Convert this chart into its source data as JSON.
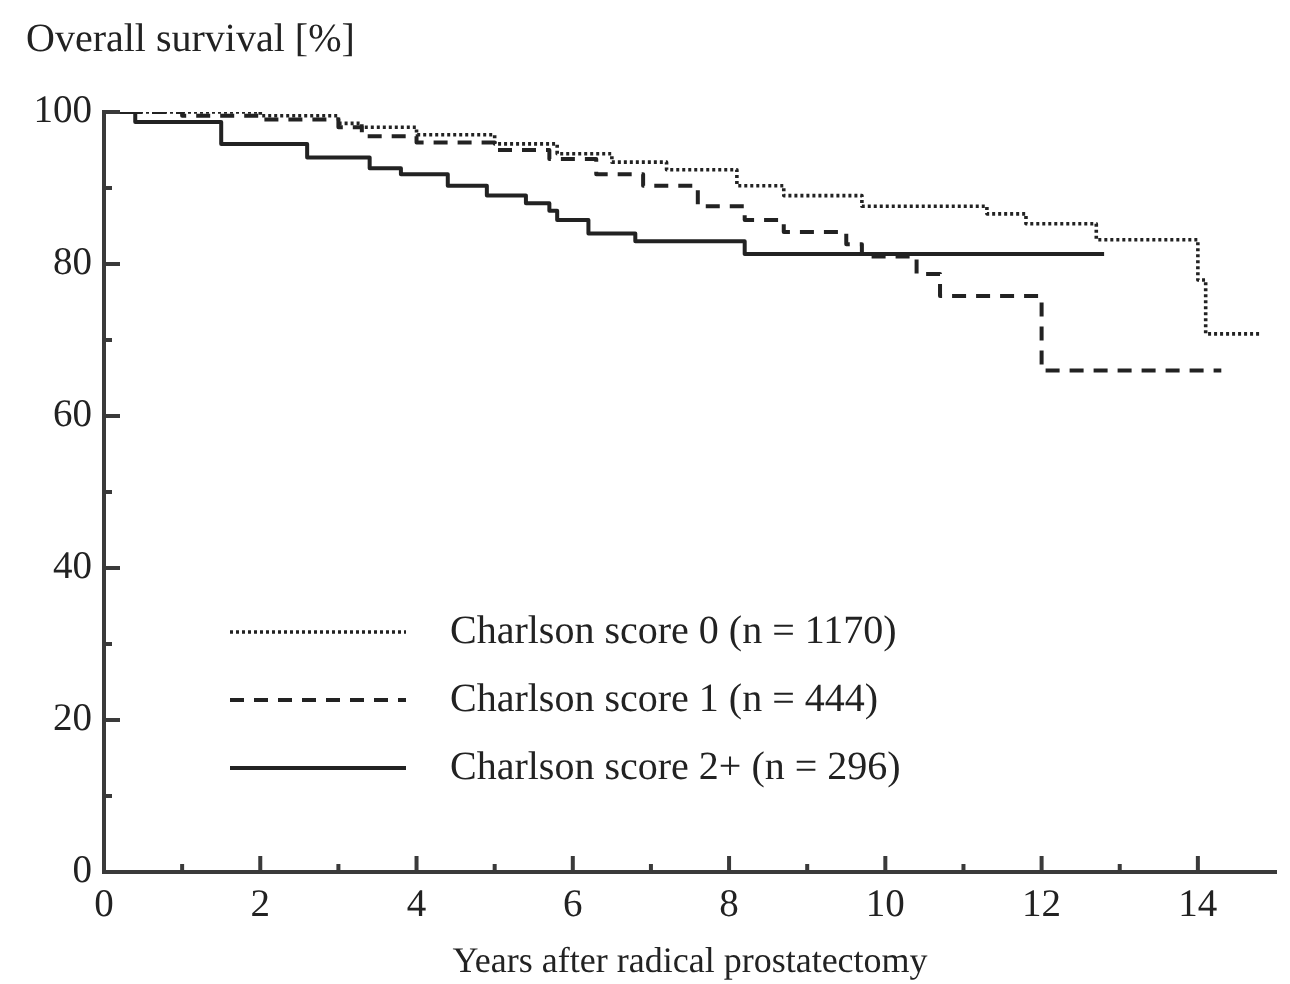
{
  "chart_data": {
    "type": "step",
    "ylabel": "Overall survival [%]",
    "xlabel": "Years after radical prostatectomy",
    "xlim": [
      0,
      15
    ],
    "ylim": [
      0,
      100
    ],
    "xticks": [
      0,
      {
        "value": 1,
        "label": null
      },
      2,
      {
        "value": 3,
        "label": null
      },
      4,
      {
        "value": 5,
        "label": null
      },
      6,
      {
        "value": 7,
        "label": null
      },
      8,
      {
        "value": 9,
        "label": null
      },
      10,
      {
        "value": 11,
        "label": null
      },
      12,
      {
        "value": 13,
        "label": null
      },
      14
    ],
    "yticks": [
      0,
      {
        "value": 10,
        "label": null
      },
      20,
      {
        "value": 30,
        "label": null
      },
      40,
      {
        "value": 50,
        "label": null
      },
      60,
      {
        "value": 70,
        "label": null
      },
      80,
      {
        "value": 90,
        "label": null
      },
      100
    ],
    "legend": "bottom left",
    "marker": "none",
    "series": [
      {
        "name": "Charlson score 0 (n = 1170)",
        "color": "#222222",
        "line_style": "dotted",
        "x": [
          0,
          2.0,
          3.0,
          3.3,
          4.0,
          5.0,
          5.8,
          6.5,
          7.2,
          8.1,
          8.7,
          9.7,
          11.3,
          11.8,
          12.7,
          14.0,
          14.1,
          14.8
        ],
        "values": [
          100,
          99.5,
          98.5,
          98,
          97,
          95.8,
          94.5,
          93.4,
          92.4,
          90.3,
          89,
          87.6,
          86.6,
          85.3,
          83.2,
          77.9,
          70.8,
          70.8
        ]
      },
      {
        "name": "Charlson score 1 (n = 444)",
        "color": "#222222",
        "line_style": "dashed",
        "x": [
          0,
          1.0,
          2.0,
          3.0,
          3.3,
          4.0,
          5.0,
          5.7,
          6.3,
          6.9,
          7.6,
          8.2,
          8.7,
          9.5,
          9.7,
          10.4,
          10.7,
          12.0,
          14.3
        ],
        "values": [
          100,
          99.5,
          99,
          98,
          96.8,
          96,
          95,
          93.8,
          91.8,
          90.3,
          87.6,
          85.8,
          84.2,
          82.6,
          81,
          78.7,
          75.8,
          66,
          66
        ]
      },
      {
        "name": "Charlson score 2+ (n = 296)",
        "color": "#222222",
        "line_style": "solid",
        "x": [
          0,
          0.4,
          1.5,
          2.6,
          3.4,
          3.8,
          4.4,
          4.9,
          5.4,
          5.7,
          5.8,
          6.2,
          6.8,
          8.2,
          12.8
        ],
        "values": [
          100,
          98.7,
          95.8,
          94,
          92.6,
          91.8,
          90.3,
          89,
          88,
          87,
          85.8,
          84,
          83,
          81.3,
          81.3
        ]
      }
    ]
  }
}
